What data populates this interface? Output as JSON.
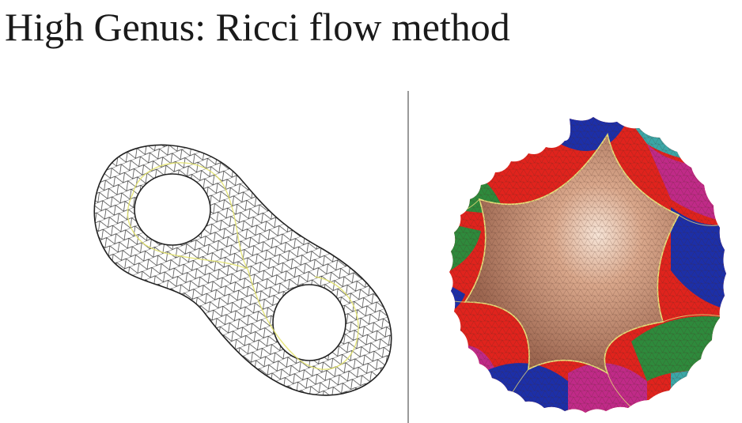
{
  "slide": {
    "title": "High Genus: Ricci flow method"
  },
  "figures": {
    "left": {
      "icon": "genus-two-triangle-mesh",
      "colors": {
        "mesh_line": "#2a2a2a",
        "loop_line": "#e3e36a"
      }
    },
    "right": {
      "icon": "hyperbolic-disk-tiling",
      "colors": {
        "center": "#d8a58a",
        "red": "#e0231d",
        "blue": "#1c2fa8",
        "green": "#2e8a3c",
        "magenta": "#c02a88",
        "teal": "#3aa7a7",
        "dark_red": "#6e0f12",
        "edge": "#e9df7a"
      }
    }
  }
}
